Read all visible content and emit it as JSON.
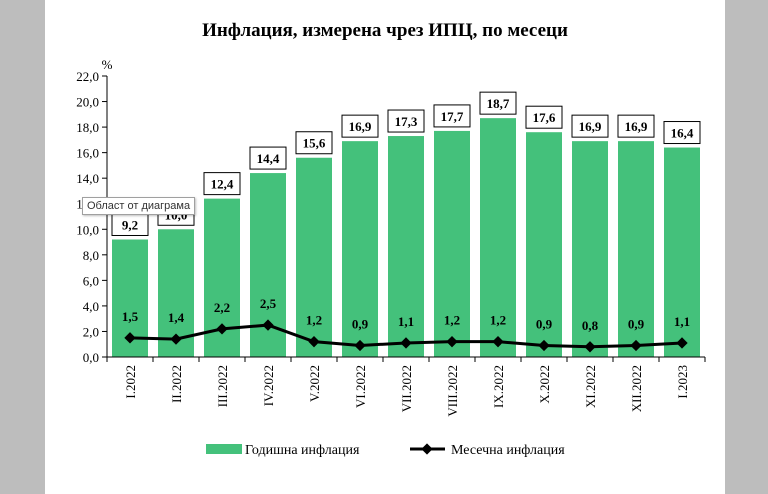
{
  "tooltip": "Област от диаграма",
  "chart_data": {
    "type": "bar",
    "title": "Инфлация, измерена чрез ИПЦ, по месеци",
    "ylabel": "%",
    "xlabel": "",
    "ylim": [
      0,
      22
    ],
    "yticks": [
      "0,0",
      "2,0",
      "4,0",
      "6,0",
      "8,0",
      "10,0",
      "12,0",
      "14,0",
      "16,0",
      "18,0",
      "20,0",
      "22,0"
    ],
    "categories": [
      "I.2022",
      "II.2022",
      "III.2022",
      "IV.2022",
      "V.2022",
      "VI.2022",
      "VII.2022",
      "VIII.2022",
      "IX.2022",
      "X.2022",
      "XI.2022",
      "XII.2022",
      "I.2023"
    ],
    "series": [
      {
        "name": "Годишна инфлация",
        "type": "bar",
        "color": "#44c17b",
        "values": [
          9.2,
          10.0,
          12.4,
          14.4,
          15.6,
          16.9,
          17.3,
          17.7,
          18.7,
          17.6,
          16.9,
          16.9,
          16.4
        ],
        "labels": [
          "9,2",
          "10,0",
          "12,4",
          "14,4",
          "15,6",
          "16,9",
          "17,3",
          "17,7",
          "18,7",
          "17,6",
          "16,9",
          "16,9",
          "16,4"
        ]
      },
      {
        "name": "Месечна инфлация",
        "type": "line",
        "color": "#000000",
        "values": [
          1.5,
          1.4,
          2.2,
          2.5,
          1.2,
          0.9,
          1.1,
          1.2,
          1.2,
          0.9,
          0.8,
          0.9,
          1.1
        ],
        "labels": [
          "1,5",
          "1,4",
          "2,2",
          "2,5",
          "1,2",
          "0,9",
          "1,1",
          "1,2",
          "1,2",
          "0,9",
          "0,8",
          "0,9",
          "1,1"
        ]
      }
    ],
    "grid": false,
    "legend": "bottom"
  }
}
